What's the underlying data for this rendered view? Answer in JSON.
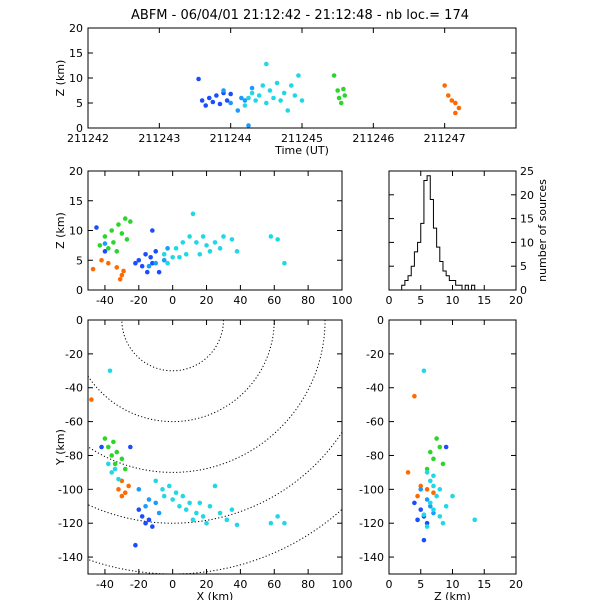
{
  "title": "ABFM - 06/04/01 21:12:42 - 21:12:48 - nb loc.=     174",
  "colors": {
    "orange": "#ff6a00",
    "green": "#2bd62b",
    "cyan": "#1fd8e6",
    "sky": "#1a9bff",
    "blue": "#1a4dff",
    "darkblue": "#1020c0"
  },
  "chart_data": [
    {
      "type": "scatter",
      "panel": "time-altitude",
      "xlabel": "Time (UT)",
      "ylabel": "Z (km)",
      "xlim": [
        211242,
        211248
      ],
      "ylim": [
        0,
        20
      ],
      "xticks": [
        211242,
        211243,
        211244,
        211245,
        211246,
        211247
      ],
      "xtick_labels": [
        "211242",
        "211243",
        "211244",
        "211245",
        "211246",
        "211247"
      ],
      "yticks": [
        0,
        5,
        10,
        15,
        20
      ],
      "series": [
        {
          "color_key": "blue",
          "points": [
            [
              211243.55,
              9.8
            ],
            [
              211243.6,
              5.5
            ],
            [
              211243.65,
              4.5
            ],
            [
              211243.7,
              6.0
            ],
            [
              211243.75,
              5.2
            ],
            [
              211243.8,
              6.5
            ],
            [
              211243.85,
              4.8
            ],
            [
              211243.9,
              7.0
            ],
            [
              211243.95,
              5.5
            ],
            [
              211244.0,
              6.8
            ]
          ]
        },
        {
          "color_key": "sky",
          "points": [
            [
              211243.9,
              7.5
            ],
            [
              211244.0,
              5.0
            ],
            [
              211244.1,
              3.5
            ],
            [
              211244.15,
              6.0
            ],
            [
              211244.2,
              5.5
            ],
            [
              211244.25,
              0.5
            ],
            [
              211244.3,
              8.0
            ]
          ]
        },
        {
          "color_key": "cyan",
          "points": [
            [
              211244.2,
              4.5
            ],
            [
              211244.25,
              6.0
            ],
            [
              211244.3,
              7.0
            ],
            [
              211244.35,
              5.5
            ],
            [
              211244.4,
              6.5
            ],
            [
              211244.45,
              8.5
            ],
            [
              211244.5,
              5.0
            ],
            [
              211244.5,
              12.8
            ],
            [
              211244.55,
              7.5
            ],
            [
              211244.6,
              6.0
            ],
            [
              211244.65,
              9.0
            ],
            [
              211244.7,
              5.5
            ],
            [
              211244.75,
              7.0
            ],
            [
              211244.8,
              3.5
            ],
            [
              211244.85,
              8.5
            ],
            [
              211244.9,
              6.5
            ],
            [
              211244.95,
              10.5
            ],
            [
              211245.0,
              5.5
            ]
          ]
        },
        {
          "color_key": "green",
          "points": [
            [
              211245.45,
              10.5
            ],
            [
              211245.5,
              7.5
            ],
            [
              211245.52,
              6.0
            ],
            [
              211245.55,
              5.0
            ],
            [
              211245.58,
              7.8
            ],
            [
              211245.6,
              6.5
            ]
          ]
        },
        {
          "color_key": "orange",
          "points": [
            [
              211247.0,
              8.5
            ],
            [
              211247.05,
              6.5
            ],
            [
              211247.1,
              5.5
            ],
            [
              211247.15,
              3.0
            ],
            [
              211247.2,
              4.0
            ],
            [
              211247.15,
              5.0
            ]
          ]
        }
      ]
    },
    {
      "type": "scatter",
      "panel": "x-altitude",
      "xlabel": "",
      "ylabel": "Z (km)",
      "xlim": [
        -50,
        100
      ],
      "ylim": [
        0,
        20
      ],
      "xticks": [
        -40,
        -20,
        0,
        20,
        40,
        60,
        80,
        100
      ],
      "yticks": [
        0,
        5,
        10,
        15,
        20
      ],
      "series": [
        {
          "color_key": "orange",
          "points": [
            [
              -47,
              3.5
            ],
            [
              -42,
              5.0
            ],
            [
              -38,
              4.5
            ],
            [
              -33,
              3.8
            ],
            [
              -31,
              1.8
            ],
            [
              -29,
              3.2
            ],
            [
              -30,
              2.5
            ]
          ]
        },
        {
          "color_key": "green",
          "points": [
            [
              -43,
              7.5
            ],
            [
              -40,
              9.0
            ],
            [
              -38,
              7.0
            ],
            [
              -36,
              10.0
            ],
            [
              -35,
              8.0
            ],
            [
              -33,
              6.5
            ],
            [
              -32,
              11.0
            ],
            [
              -30,
              9.5
            ],
            [
              -28,
              12.0
            ],
            [
              -27,
              8.5
            ],
            [
              -25,
              11.5
            ]
          ]
        },
        {
          "color_key": "blue",
          "points": [
            [
              -45,
              10.5
            ],
            [
              -40,
              6.5
            ],
            [
              -22,
              4.5
            ],
            [
              -20,
              5.0
            ],
            [
              -18,
              4.0
            ],
            [
              -16,
              6.0
            ],
            [
              -15,
              3.0
            ],
            [
              -13,
              5.5
            ],
            [
              -12,
              4.5
            ],
            [
              -10,
              6.5
            ],
            [
              -8,
              3.0
            ],
            [
              -12,
              10.0
            ]
          ]
        },
        {
          "color_key": "sky",
          "points": [
            [
              -40,
              7.8
            ],
            [
              -14,
              4.0
            ],
            [
              -10,
              4.5
            ],
            [
              -5,
              5.0
            ],
            [
              -3,
              7.0
            ]
          ]
        },
        {
          "color_key": "cyan",
          "points": [
            [
              -5,
              6.0
            ],
            [
              -3,
              4.5
            ],
            [
              0,
              5.5
            ],
            [
              2,
              7.0
            ],
            [
              4,
              5.5
            ],
            [
              6,
              8.0
            ],
            [
              8,
              6.0
            ],
            [
              10,
              9.0
            ],
            [
              12,
              12.8
            ],
            [
              14,
              8.0
            ],
            [
              16,
              6.0
            ],
            [
              18,
              9.0
            ],
            [
              20,
              7.5
            ],
            [
              22,
              6.5
            ],
            [
              25,
              8.0
            ],
            [
              28,
              7.0
            ],
            [
              30,
              9.0
            ],
            [
              35,
              8.5
            ],
            [
              38,
              6.5
            ],
            [
              58,
              9.0
            ],
            [
              62,
              8.5
            ],
            [
              66,
              4.5
            ]
          ]
        }
      ]
    },
    {
      "type": "bar",
      "panel": "altitude-histogram",
      "xlabel": "",
      "ylabel": "number of sources",
      "xlim": [
        0,
        20
      ],
      "ylim": [
        0,
        25
      ],
      "xticks": [
        0,
        5,
        10,
        15,
        20
      ],
      "yticks": [
        0,
        5,
        10,
        15,
        20,
        25
      ],
      "bin_width": 0.5,
      "bin_starts": [
        2,
        2.5,
        3,
        3.5,
        4,
        4.5,
        5,
        5.5,
        6,
        6.5,
        7,
        7.5,
        8,
        8.5,
        9,
        9.5,
        10,
        10.5,
        11,
        11.5,
        12,
        12.5,
        13
      ],
      "values": [
        1,
        2,
        3,
        5,
        8,
        10,
        14,
        23,
        24,
        19,
        13,
        9,
        6,
        4,
        3,
        2,
        2,
        1,
        1,
        0,
        1,
        0,
        1
      ]
    },
    {
      "type": "scatter",
      "panel": "x-y",
      "xlabel": "X (km)",
      "ylabel": "Y (km)",
      "xlim": [
        -50,
        100
      ],
      "ylim": [
        -150,
        0
      ],
      "xticks": [
        -40,
        -20,
        0,
        20,
        40,
        60,
        80,
        100
      ],
      "yticks": [
        -140,
        -120,
        -100,
        -80,
        -60,
        -40,
        -20,
        0
      ],
      "range_circle_radii_km": [
        30,
        60,
        90,
        120,
        150
      ],
      "range_circle_center": [
        0,
        0
      ],
      "series": [
        {
          "color_key": "orange",
          "points": [
            [
              -48,
              -47
            ],
            [
              -30,
              -95
            ],
            [
              -32,
              -100
            ],
            [
              -28,
              -102
            ],
            [
              -30,
              -104
            ],
            [
              -26,
              -98
            ]
          ]
        },
        {
          "color_key": "green",
          "points": [
            [
              -40,
              -70
            ],
            [
              -38,
              -75
            ],
            [
              -36,
              -80
            ],
            [
              -35,
              -72
            ],
            [
              -33,
              -78
            ],
            [
              -34,
              -85
            ],
            [
              -30,
              -82
            ],
            [
              -28,
              -88
            ]
          ]
        },
        {
          "color_key": "blue",
          "points": [
            [
              -42,
              -75
            ],
            [
              -25,
              -75
            ],
            [
              -20,
              -112
            ],
            [
              -18,
              -116
            ],
            [
              -16,
              -120
            ],
            [
              -14,
              -118
            ],
            [
              -12,
              -122
            ],
            [
              -22,
              -133
            ]
          ]
        },
        {
          "color_key": "sky",
          "points": [
            [
              -20,
              -100
            ],
            [
              -16,
              -110
            ],
            [
              -14,
              -106
            ],
            [
              -10,
              -108
            ],
            [
              -8,
              -114
            ]
          ]
        },
        {
          "color_key": "cyan",
          "points": [
            [
              -37,
              -30
            ],
            [
              -38,
              -85
            ],
            [
              -36,
              -90
            ],
            [
              -34,
              -88
            ],
            [
              -32,
              -94
            ],
            [
              -10,
              -95
            ],
            [
              -6,
              -100
            ],
            [
              -5,
              -104
            ],
            [
              -2,
              -98
            ],
            [
              0,
              -106
            ],
            [
              2,
              -102
            ],
            [
              4,
              -110
            ],
            [
              6,
              -104
            ],
            [
              8,
              -112
            ],
            [
              10,
              -108
            ],
            [
              12,
              -118
            ],
            [
              14,
              -114
            ],
            [
              16,
              -108
            ],
            [
              18,
              -116
            ],
            [
              20,
              -120
            ],
            [
              22,
              -110
            ],
            [
              25,
              -98
            ],
            [
              28,
              -114
            ],
            [
              32,
              -118
            ],
            [
              35,
              -112
            ],
            [
              38,
              -121
            ],
            [
              58,
              -120
            ],
            [
              62,
              -116
            ],
            [
              66,
              -120
            ]
          ]
        }
      ]
    },
    {
      "type": "scatter",
      "panel": "z-y",
      "xlabel": "Z (km)",
      "ylabel": "",
      "xlim": [
        0,
        20
      ],
      "ylim": [
        -150,
        0
      ],
      "xticks": [
        0,
        5,
        10,
        15,
        20
      ],
      "yticks": [
        -140,
        -120,
        -100,
        -80,
        -60,
        -40,
        -20,
        0
      ],
      "series": [
        {
          "color_key": "orange",
          "points": [
            [
              4,
              -45
            ],
            [
              3,
              -90
            ],
            [
              5,
              -98
            ],
            [
              6,
              -100
            ],
            [
              7,
              -102
            ],
            [
              4.5,
              -104
            ]
          ]
        },
        {
          "color_key": "green",
          "points": [
            [
              7.5,
              -70
            ],
            [
              8,
              -75
            ],
            [
              6.5,
              -78
            ],
            [
              7,
              -82
            ],
            [
              8.5,
              -85
            ],
            [
              6,
              -88
            ]
          ]
        },
        {
          "color_key": "blue",
          "points": [
            [
              9,
              -75
            ],
            [
              4,
              -108
            ],
            [
              5,
              -112
            ],
            [
              5.5,
              -116
            ],
            [
              6,
              -120
            ],
            [
              4.5,
              -118
            ],
            [
              5.5,
              -130
            ]
          ]
        },
        {
          "color_key": "sky",
          "points": [
            [
              5,
              -100
            ],
            [
              6,
              -106
            ],
            [
              6.5,
              -110
            ],
            [
              7,
              -114
            ]
          ]
        },
        {
          "color_key": "cyan",
          "points": [
            [
              5.5,
              -30
            ],
            [
              6,
              -90
            ],
            [
              6.5,
              -95
            ],
            [
              7,
              -98
            ],
            [
              7.5,
              -104
            ],
            [
              8,
              -100
            ],
            [
              6.5,
              -108
            ],
            [
              7,
              -112
            ],
            [
              8,
              -116
            ],
            [
              9,
              -110
            ],
            [
              5.5,
              -115
            ],
            [
              13.5,
              -118
            ],
            [
              10,
              -104
            ],
            [
              8.5,
              -120
            ],
            [
              6,
              -122
            ],
            [
              7,
              -92
            ]
          ]
        }
      ]
    }
  ]
}
